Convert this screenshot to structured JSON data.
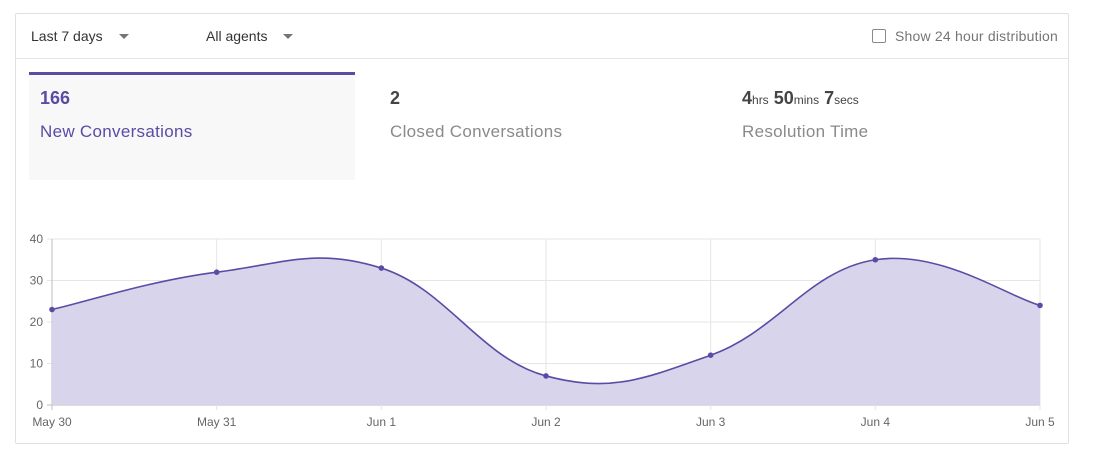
{
  "toolbar": {
    "range_label": "Last 7 days",
    "agents_label": "All agents",
    "distribution_label": "Show 24 hour distribution",
    "distribution_checked": false
  },
  "stats": [
    {
      "value": "166",
      "label": "New Conversations",
      "active": true
    },
    {
      "value": "2",
      "label": "Closed Conversations",
      "active": false
    },
    {
      "value_parts": [
        {
          "num": "4",
          "unit": "hrs"
        },
        {
          "num": "50",
          "unit": "mins"
        },
        {
          "num": "7",
          "unit": "secs"
        }
      ],
      "label": "Resolution Time",
      "active": false
    }
  ],
  "colors": {
    "accent": "#5b4ba5",
    "fill": "#d6d2ea",
    "grid": "#e6e6e6"
  },
  "chart_data": {
    "type": "area",
    "categories": [
      "May 30",
      "May 31",
      "Jun 1",
      "Jun 2",
      "Jun 3",
      "Jun 4",
      "Jun 5"
    ],
    "series": [
      {
        "values": [
          23,
          32,
          33,
          7,
          12,
          35,
          24
        ]
      }
    ],
    "yticks": [
      "0",
      "10",
      "20",
      "30",
      "40"
    ],
    "ylim": [
      0,
      40
    ],
    "grid": true,
    "legend": "none"
  }
}
